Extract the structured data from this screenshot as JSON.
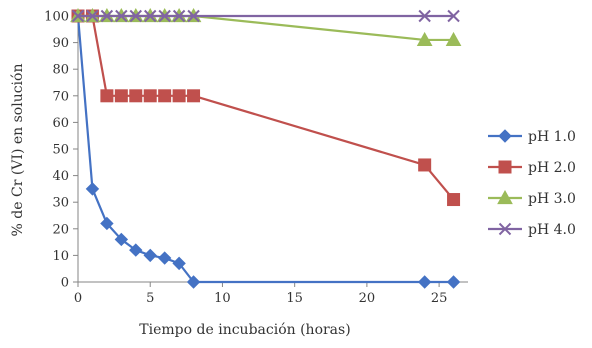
{
  "chart_data": {
    "type": "line",
    "title": "",
    "xlabel": "Tiempo de incubación (horas)",
    "ylabel": "% de Cr (VI) en solución",
    "xlim": [
      0,
      27
    ],
    "ylim": [
      0,
      100
    ],
    "xticks": [
      0,
      5,
      10,
      15,
      20,
      25
    ],
    "yticks": [
      0,
      10,
      20,
      30,
      40,
      50,
      60,
      70,
      80,
      90,
      100
    ],
    "grid": false,
    "legend_position": "right",
    "series": [
      {
        "name": "pH 1.0",
        "color": "#4472c4",
        "marker": "diamond",
        "x": [
          0,
          1,
          2,
          3,
          4,
          5,
          6,
          7,
          8,
          24,
          26
        ],
        "y": [
          100,
          35,
          22,
          16,
          12,
          10,
          9,
          7,
          0,
          0,
          0
        ]
      },
      {
        "name": "pH 2.0",
        "color": "#c0504d",
        "marker": "square",
        "x": [
          0,
          1,
          2,
          3,
          4,
          5,
          6,
          7,
          8,
          24,
          26
        ],
        "y": [
          100,
          100,
          70,
          70,
          70,
          70,
          70,
          70,
          70,
          44,
          31
        ]
      },
      {
        "name": "pH 3.0",
        "color": "#9bbb59",
        "marker": "triangle",
        "x": [
          0,
          1,
          2,
          3,
          4,
          5,
          6,
          7,
          8,
          24,
          26
        ],
        "y": [
          100,
          100,
          100,
          100,
          100,
          100,
          100,
          100,
          100,
          91,
          91
        ]
      },
      {
        "name": "pH 4.0",
        "color": "#8064a2",
        "marker": "x",
        "x": [
          0,
          1,
          2,
          3,
          4,
          5,
          6,
          7,
          8,
          24,
          26
        ],
        "y": [
          100,
          100,
          100,
          100,
          100,
          100,
          100,
          100,
          100,
          100,
          100
        ]
      }
    ]
  }
}
